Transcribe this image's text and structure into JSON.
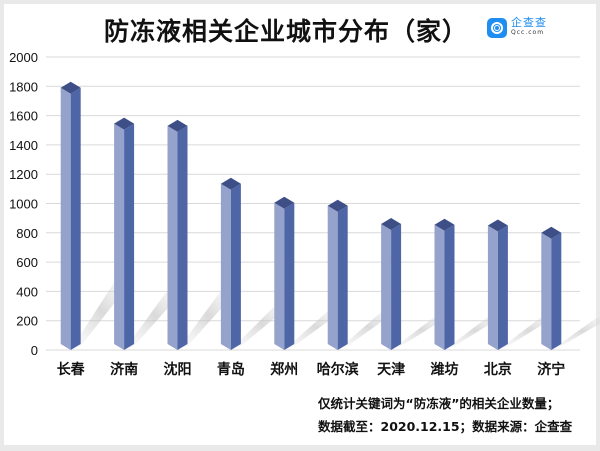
{
  "header": {
    "title": "防冻液相关企业城市分布（家）",
    "logo_cn": "企查查",
    "logo_en": "Qcc.com",
    "logo_icon": "qcc-logo-icon"
  },
  "notes": {
    "line1": "仅统计关键词为“防冻液”的相关企业数量；",
    "line2": "数据截至：2020.12.15；数据来源：企查查"
  },
  "colors": {
    "bar_front": "#95a3cc",
    "bar_side": "#4f66a6",
    "bar_top": "#3d4f86",
    "grid": "#d9d9d9",
    "logo": "#1f8ef1"
  },
  "chart_data": {
    "type": "bar",
    "title": "防冻液相关企业城市分布（家）",
    "xlabel": "",
    "ylabel": "",
    "categories": [
      "长春",
      "济南",
      "沈阳",
      "青岛",
      "郑州",
      "哈尔滨",
      "天津",
      "潍坊",
      "北京",
      "济宁"
    ],
    "values": [
      1790,
      1545,
      1530,
      1135,
      1005,
      985,
      860,
      855,
      850,
      800
    ],
    "ylim": [
      0,
      2000
    ],
    "yticks": [
      0,
      200,
      400,
      600,
      800,
      1000,
      1200,
      1400,
      1600,
      1800,
      2000
    ],
    "grid": true,
    "legend": "none",
    "style": "3d-column"
  }
}
